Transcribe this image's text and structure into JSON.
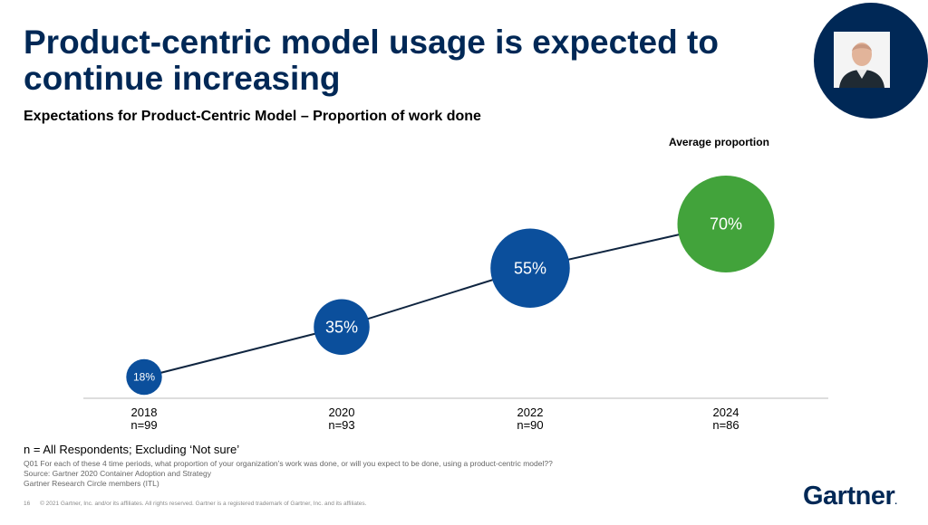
{
  "title": "Product-centric model usage is expected to continue increasing",
  "subtitle": "Expectations for Product-Centric Model – Proportion of work done",
  "avg_label": "Average proportion",
  "colors": {
    "navy": "#002856",
    "blue": "#0b4f9c",
    "green": "#42a33b",
    "axis": "#bbbbbb"
  },
  "chart_data": {
    "type": "line",
    "categories": [
      "2018",
      "2020",
      "2022",
      "2024"
    ],
    "category_n": [
      "n=99",
      "n=93",
      "n=90",
      "n=86"
    ],
    "values": [
      18,
      35,
      55,
      70
    ],
    "point_labels": [
      "18%",
      "35%",
      "55%",
      "70%"
    ],
    "highlight_last": true,
    "ylabel": "",
    "xlabel": ""
  },
  "footnote_main": "n = All Respondents; Excluding ‘Not sure’",
  "footnotes": [
    "Q01 For each of these 4 time periods, what proportion of your organization’s work was done, or will you expect to be done, using a product-centric model??",
    "Source: Gartner 2020 Container Adoption and Strategy",
    "Gartner Research Circle members (ITL)"
  ],
  "copyright": "16      © 2021 Gartner, Inc. and/or its affiliates. All rights reserved. Gartner is a registered trademark of Gartner, Inc. and its affiliates.",
  "logo_text": "Gartner",
  "logo_dot": "."
}
